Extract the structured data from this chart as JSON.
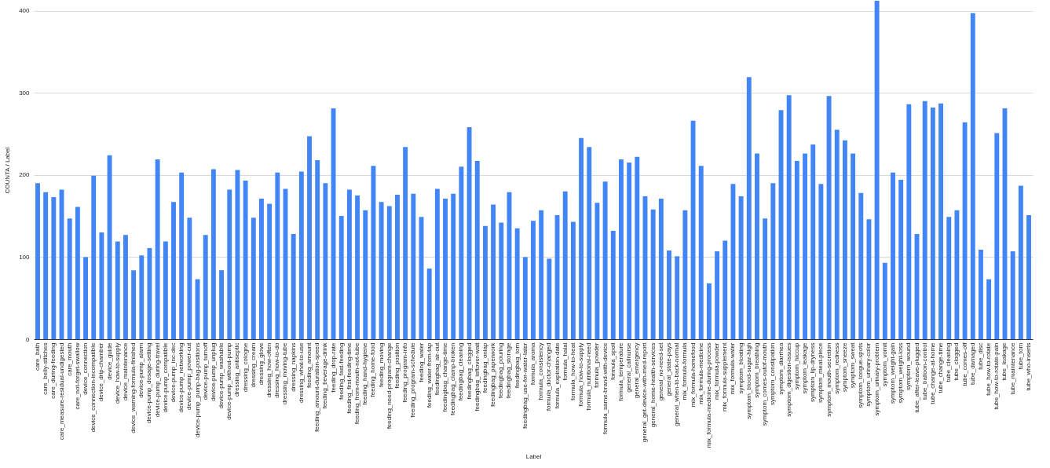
{
  "chart_data": {
    "type": "bar",
    "xlabel": "Label",
    "ylabel": "COUNTA / Label",
    "color": "#4285f4",
    "grid": "y",
    "ylim": [
      0,
      412
    ],
    "yticks": [
      0,
      100,
      200,
      300,
      400
    ],
    "categories": [
      "care_bath",
      "care_belly-stitches",
      "care_during-feeding",
      "care_measure-residual-undigested",
      "care_mouth",
      "care_not-forget-swallow",
      "device_connection",
      "device_connection-incompatible",
      "device_drip-chamber",
      "device_guide",
      "device_how-to-supply",
      "device_maintenance",
      "device_warning-formula-finished",
      "device-pump_alarm",
      "device-pump_dosage-setting",
      "device-pump_during-travel",
      "device-pump_compatible",
      "device-pump_inc-dec",
      "device-pump_networking",
      "device-pump_power-cut",
      "device-pump_pump-bag-positions",
      "device-pump_turnoff",
      "device-pump_unplug",
      "device-pump_washable",
      "device-pump_without-pump",
      "dressing_antiseptic",
      "dressing_cologne",
      "dressing_cream",
      "dressing_glove",
      "dressing_how-often",
      "dressing_how-to-do",
      "dressing_moving-tube",
      "dressing_napkins",
      "dressing_what-to-use",
      "feeding_amount",
      "feeding_amount-duration-speed",
      "feeding_beverage-drink",
      "feeding_drop-rate",
      "feeding_fast-feeding",
      "feeding_first-feeding-time",
      "feeding_from-mouth-not-tube",
      "feeding_hand-hygiene",
      "feeding_home-food",
      "feeding_moving",
      "feeding_need-program-change",
      "feeding_position",
      "feeding_program-info",
      "feeding_program-schedule",
      "feeding_water",
      "feeding_water-from-tap",
      "feedingbag_air-out",
      "feedingbag_change-time",
      "feedingbag_clamp-broken",
      "feedingbag_cleaning",
      "feedingbag_clogged",
      "feedingbag_leftover-wait",
      "feedingbag_onlap",
      "feedingbag_paperwork",
      "feedingbag_pouring",
      "feedingbag_storage",
      "feedingbag_torn",
      "feedingbag_use-for-water-later",
      "formula_aroma",
      "formula_consistency",
      "formula_doctor-changed",
      "formula_expiration-date",
      "formula_halal",
      "formula_how-to-heat",
      "formula_how-to-supply",
      "formula_nutritional-need",
      "formula_powder",
      "formula_same-brand-with-device",
      "formula_spoil",
      "formula_temperature",
      "general_callnurse",
      "general_emergency",
      "general_get-device-with-med-report",
      "general_home-health-services",
      "general_no-need-set",
      "general_state-pays",
      "general_when-to-back-normal",
      "mix_formula-formula",
      "mix_formula-homefood",
      "mix_formula-medicine",
      "mix_formula-medicine-during-process",
      "mix_formula-powder",
      "mix_formula-supplement",
      "mix_formula-water",
      "symptom_bloating",
      "symptom_blood-sugar-high",
      "symptom_breathing",
      "symptom_comes-outof-mouth",
      "symptom_constipation",
      "symptom_diarrhea",
      "symptom_digestion-issues",
      "symptom_hiccup",
      "symptom_leakage",
      "symptom_lip-dryness",
      "symptom_meat-piece",
      "symptom_mouth-secretion",
      "symptom_redness",
      "symptom_sneeze",
      "symptom_sweat",
      "symptom_tongue-spots",
      "symptom_urinary-color",
      "symptom_urinary-problem",
      "symptom_vomit",
      "symptom_weight-gain",
      "symptom_weight-loss",
      "symptom_wound",
      "tube_after-leave-plugged",
      "tube_balloon-control",
      "tube_change-at-home",
      "tube_change-time",
      "tube_cleaning",
      "tube_clogged",
      "tube_comes-off",
      "tube_damaged",
      "tube_disc",
      "tube_how-to-rotate",
      "tube_how-to-rotate-pain",
      "tube_leakage",
      "tube_maintenance",
      "tube_torn",
      "tube_who-inserts"
    ],
    "values": [
      190,
      179,
      173,
      182,
      147,
      161,
      100,
      199,
      130,
      224,
      119,
      127,
      84,
      102,
      111,
      219,
      119,
      167,
      203,
      148,
      73,
      127,
      207,
      84,
      182,
      206,
      193,
      148,
      171,
      165,
      203,
      183,
      128,
      204,
      247,
      218,
      190,
      281,
      150,
      182,
      175,
      157,
      211,
      167,
      162,
      176,
      234,
      177,
      149,
      86,
      183,
      171,
      177,
      210,
      258,
      217,
      138,
      164,
      142,
      179,
      135,
      100,
      144,
      157,
      98,
      151,
      180,
      143,
      245,
      234,
      166,
      192,
      132,
      219,
      215,
      222,
      174,
      158,
      171,
      108,
      101,
      157,
      266,
      211,
      68,
      107,
      120,
      189,
      174,
      319,
      226,
      147,
      190,
      279,
      297,
      217,
      226,
      237,
      189,
      296,
      255,
      242,
      226,
      178,
      146,
      412,
      93,
      203,
      194,
      286,
      128,
      290,
      282,
      287,
      149,
      157,
      264,
      397,
      109,
      73,
      251,
      281,
      107,
      187,
      151
    ]
  }
}
